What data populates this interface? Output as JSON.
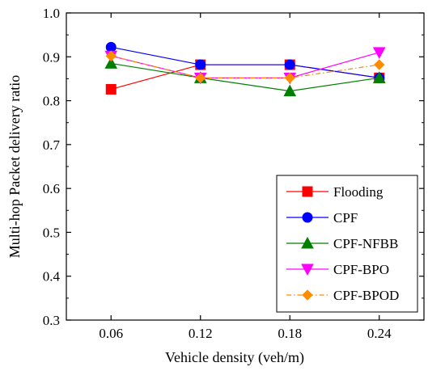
{
  "chart_data": {
    "type": "line",
    "xlabel": "Vehicle density (veh/m)",
    "ylabel": "Multi-hop Packet delivery ratio",
    "x": [
      0.06,
      0.12,
      0.18,
      0.24
    ],
    "x_tick_labels": [
      "0.06",
      "0.12",
      "0.18",
      "0.24"
    ],
    "xlim": [
      0.03,
      0.27
    ],
    "ylim": [
      0.3,
      1.0
    ],
    "y_ticks": [
      0.3,
      0.4,
      0.5,
      0.6,
      0.7,
      0.8,
      0.9,
      1.0
    ],
    "y_tick_labels": [
      "0.3",
      "0.4",
      "0.5",
      "0.6",
      "0.7",
      "0.8",
      "0.9",
      "1.0"
    ],
    "grid": false,
    "legend_position": "bottom-right",
    "series": [
      {
        "name": "Flooding",
        "values": [
          0.826,
          0.882,
          0.882,
          0.852
        ],
        "color": "#ff0000",
        "marker": "square",
        "line_style": "solid"
      },
      {
        "name": "CPF",
        "values": [
          0.922,
          0.882,
          0.882,
          0.852
        ],
        "color": "#0000ff",
        "marker": "circle",
        "line_style": "solid"
      },
      {
        "name": "CPF-NFBB",
        "values": [
          0.885,
          0.852,
          0.822,
          0.852
        ],
        "color": "#008000",
        "marker": "triangle-up",
        "line_style": "solid"
      },
      {
        "name": "CPF-BPO",
        "values": [
          0.902,
          0.852,
          0.852,
          0.91
        ],
        "color": "#ff00ff",
        "marker": "triangle-down",
        "line_style": "solid"
      },
      {
        "name": "CPF-BPOD",
        "values": [
          0.902,
          0.852,
          0.852,
          0.882
        ],
        "color": "#ff8c00",
        "marker": "diamond",
        "line_style": "dash-dot"
      }
    ]
  }
}
